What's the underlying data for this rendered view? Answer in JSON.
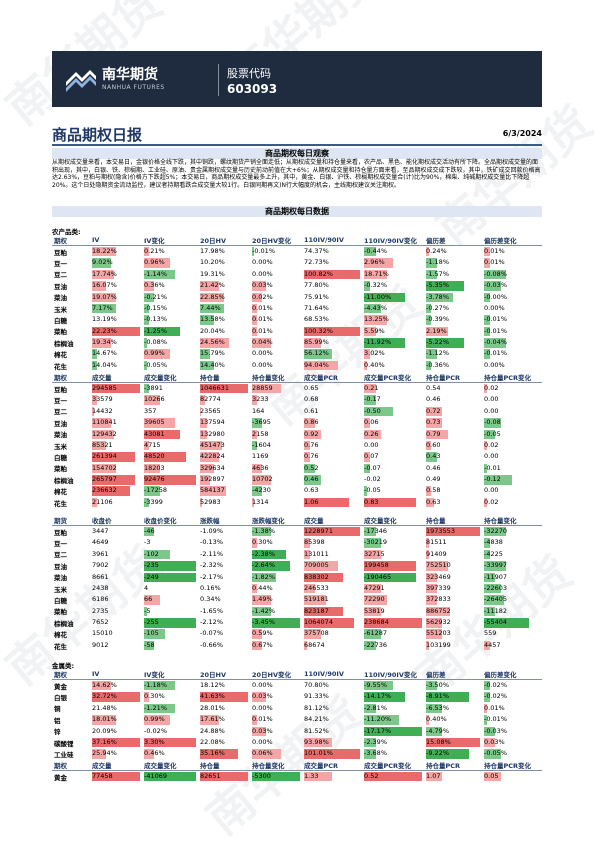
{
  "header": {
    "brand_cn": "南华期货",
    "brand_en": "NANHUA FUTURES",
    "stock_label": "股票代码",
    "stock_code": "603093"
  },
  "report": {
    "title": "商品期权日报",
    "date": "6/3/2024"
  },
  "observation": {
    "heading": "商品期权每日观察",
    "text": "从期权成交量来看，本交易日，金银价格全线下跌，其中铜跌，螺纹期货产销全面走低；从期权成交量和持仓量来看，农产品、黑色、能化期权成交活动有所下降。全品期权成交量的面积出现，其中，白银、铁、棕榈期、工业硅、原油、贵金属期权成交量与历史前动前值在大+6%；从期权成交量和持仓量方面来看，至品期权成交成下跌较，其中，铁矿成交回款价格高达2.63%，豆粕与期权(隐含)价格方下跌超5%；本交易日，商品期权成交量最多上升，其中，黄金、白银、沪铁、棕榈期权成交量合(计)比为90%，棉柴、纯碱期权成交量比下降超20%。这个日处隐期资金流动监控，建议者持期看跌合成交量大较1行。白银同期再文)N行大幅度的机会，主线期权建议关注期权。"
  },
  "data_heading": "商品期权每日数据",
  "colors": {
    "red": "#f4a6a6",
    "green": "#7cc88a",
    "red_strong": "#e86a6a",
    "green_strong": "#3fae55",
    "accent": "#1f3864"
  },
  "agri": {
    "label": "农产品类:",
    "iv_headers": [
      "期权",
      "IV",
      "IV变化",
      "20日HV",
      "20日HV变化",
      "110IV/90IV",
      "110IV/90IV变化",
      "偏历差",
      "偏历差变化"
    ],
    "iv_rows": [
      {
        "name": "豆粕",
        "c": [
          "18.22%",
          "0.21%",
          "17.98%",
          "-0.01%",
          "74.37%",
          "-0.44%",
          "0.24%",
          "0.01%"
        ],
        "v": [
          0.5,
          0.1,
          0,
          -0.05,
          0,
          -0.2,
          0.05,
          0.1
        ]
      },
      {
        "name": "豆一",
        "c": [
          "9.02%",
          "0.96%",
          "10.20%",
          "0.00%",
          "72.73%",
          "2.96%",
          "-1.18%",
          "0.01%"
        ],
        "v": [
          -0.4,
          0.5,
          0,
          0,
          0,
          0.5,
          -0.2,
          0.1
        ]
      },
      {
        "name": "豆二",
        "c": [
          "17.74%",
          "-1.14%",
          "19.31%",
          "0.00%",
          "100.82%",
          "18.71%",
          "-1.57%",
          "-0.08%"
        ],
        "v": [
          0.45,
          -0.6,
          0,
          0,
          1,
          0.4,
          -0.2,
          -0.4
        ]
      },
      {
        "name": "豆油",
        "c": [
          "16.07%",
          "0.36%",
          "21.42%",
          "0.03%",
          "77.80%",
          "-0.32%",
          "-5.35%",
          "-0.03%"
        ],
        "v": [
          0.3,
          0.2,
          0.4,
          0.3,
          0,
          -0.1,
          -0.7,
          -0.3
        ]
      },
      {
        "name": "菜油",
        "c": [
          "19.07%",
          "-0.21%",
          "22.85%",
          "0.02%",
          "75.91%",
          "-11.00%",
          "-3.78%",
          "-0.00%"
        ],
        "v": [
          0.5,
          -0.2,
          0.5,
          0.2,
          0,
          -0.7,
          -0.5,
          -0.1
        ]
      },
      {
        "name": "玉米",
        "c": [
          "7.17%",
          "-0.15%",
          "7.44%",
          "0.01%",
          "71.64%",
          "-4.43%",
          "-0.27%",
          "0.00%"
        ],
        "v": [
          -0.5,
          -0.1,
          -0.5,
          0.1,
          0,
          -0.3,
          -0.1,
          0
        ]
      },
      {
        "name": "白糖",
        "c": [
          "13.19%",
          "-0.13%",
          "13.58%",
          "0.01%",
          "68.53%",
          "13.25%",
          "-0.39%",
          "-0.01%"
        ],
        "v": [
          0,
          -0.1,
          -0.3,
          0.1,
          0,
          0.4,
          -0.1,
          -0.1
        ]
      },
      {
        "name": "菜粕",
        "c": [
          "22.23%",
          "-1.25%",
          "20.04%",
          "0.01%",
          "100.32%",
          "5.59%",
          "2.19%",
          "-0.01%"
        ],
        "v": [
          1,
          -0.7,
          0,
          0.1,
          1,
          0.2,
          0.4,
          -0.1
        ]
      },
      {
        "name": "棕榈油",
        "c": [
          "19.34%",
          "-0.08%",
          "24.56%",
          "0.04%",
          "85.99%",
          "-11.92%",
          "-5.22%",
          "-0.04%"
        ],
        "v": [
          0.4,
          -0.05,
          0.6,
          0.4,
          0.3,
          -0.7,
          -0.7,
          -0.4
        ]
      },
      {
        "name": "棉花",
        "c": [
          "14.67%",
          "0.99%",
          "15.79%",
          "0.00%",
          "56.12%",
          "3.02%",
          "-1.12%",
          "-0.01%"
        ],
        "v": [
          -0.1,
          0.5,
          -0.2,
          0,
          -0.5,
          0.1,
          -0.2,
          -0.1
        ]
      },
      {
        "name": "花生",
        "c": [
          "14.04%",
          "-0.05%",
          "14.40%",
          "0.00%",
          "94.04%",
          "0.40%",
          "-0.36%",
          "0.00%"
        ],
        "v": [
          -0.1,
          -0.05,
          -0.3,
          0,
          0.6,
          0.05,
          -0.1,
          0
        ]
      }
    ],
    "vol_headers": [
      "期权",
      "成交量",
      "成交量变化",
      "持仓量",
      "持仓量变化",
      "成交量PCR",
      "成交量PCR变化",
      "持仓量PCR",
      "持仓量PCR变化"
    ],
    "vol_rows": [
      {
        "name": "豆粕",
        "c": [
          "294585",
          "-3891",
          "1046631",
          "28859",
          "0.65",
          "0.21",
          "0.54",
          "0.02"
        ],
        "v": [
          1,
          -0.1,
          1,
          0.6,
          0,
          0.2,
          0,
          0.05
        ]
      },
      {
        "name": "豆一",
        "c": [
          "33579",
          "10266",
          "82774",
          "3233",
          "0.68",
          "-0.17",
          "0.46",
          "0.00"
        ],
        "v": [
          0.1,
          0.3,
          0.1,
          0.1,
          0,
          -0.2,
          0,
          0
        ]
      },
      {
        "name": "豆二",
        "c": [
          "14432",
          "357",
          "23565",
          "164",
          "0.61",
          "-0.50",
          "0.72",
          "0.00"
        ],
        "v": [
          0.05,
          0,
          0.03,
          0,
          0,
          -0.5,
          0.3,
          0
        ]
      },
      {
        "name": "豆油",
        "c": [
          "110841",
          "39605",
          "137594",
          "-3695",
          "0.86",
          "0.06",
          "0.73",
          "-0.08"
        ],
        "v": [
          0.4,
          0.6,
          0.15,
          -0.2,
          0.2,
          0.1,
          0.3,
          -0.3
        ]
      },
      {
        "name": "菜油",
        "c": [
          "129432",
          "43081",
          "132980",
          "2158",
          "0.92",
          "0.26",
          "0.79",
          "-0.05"
        ],
        "v": [
          0.45,
          0.7,
          0.15,
          0.1,
          0.3,
          0.3,
          0.4,
          -0.2
        ]
      },
      {
        "name": "玉米",
        "c": [
          "85321",
          "4715",
          "451473",
          "-1604",
          "0.76",
          "0.00",
          "0.60",
          "0.02"
        ],
        "v": [
          0.3,
          0.1,
          0.45,
          -0.1,
          0.1,
          0,
          0.1,
          0.05
        ]
      },
      {
        "name": "白糖",
        "c": [
          "261394",
          "48520",
          "422824",
          "1169",
          "0.76",
          "0.07",
          "0.43",
          "0.00"
        ],
        "v": [
          0.9,
          0.8,
          0.4,
          0,
          0.1,
          0.1,
          -0.2,
          0
        ]
      },
      {
        "name": "菜粕",
        "c": [
          "154702",
          "18203",
          "329634",
          "4636",
          "0.52",
          "-0.07",
          "0.46",
          "-0.01"
        ],
        "v": [
          0.5,
          0.3,
          0.3,
          0.2,
          -0.2,
          -0.1,
          0,
          -0.05
        ]
      },
      {
        "name": "棕榈油",
        "c": [
          "265797",
          "92476",
          "192897",
          "10702",
          "0.46",
          "-0.02",
          "0.49",
          "-0.12"
        ],
        "v": [
          0.9,
          1,
          0.2,
          0.4,
          -0.3,
          0,
          0,
          -0.5
        ]
      },
      {
        "name": "棉花",
        "c": [
          "236632",
          "-17258",
          "584137",
          "-4230",
          "0.63",
          "-0.05",
          "0.58",
          "0.00"
        ],
        "v": [
          0.8,
          -0.3,
          0.55,
          -0.2,
          0,
          -0.05,
          0.1,
          0
        ]
      },
      {
        "name": "花生",
        "c": [
          "21106",
          "-3399",
          "52983",
          "1314",
          "1.06",
          "0.83",
          "0.63",
          "0.02"
        ],
        "v": [
          0.1,
          -0.1,
          0.05,
          0.05,
          0.8,
          0.9,
          0.15,
          0.05
        ]
      }
    ],
    "fut_headers": [
      "期货",
      "收盘价",
      "收盘价变化",
      "涨跌幅",
      "涨跌幅变化",
      "成交量",
      "成交量变化",
      "持仓量",
      "持仓量变化"
    ],
    "fut_rows": [
      {
        "name": "豆粕",
        "c": [
          "3447",
          "-46",
          "-1.09%",
          "-1.38%",
          "1228971",
          "-17346",
          "1973553",
          "-32270"
        ],
        "v": [
          0,
          -0.2,
          0,
          -0.4,
          1,
          -0.2,
          1,
          -0.4
        ]
      },
      {
        "name": "豆一",
        "c": [
          "4649",
          "-3",
          "-0.13%",
          "0.30%",
          "85398",
          "-30219",
          "81511",
          "-4838"
        ],
        "v": [
          0,
          0,
          0,
          0.1,
          0.1,
          -0.3,
          0.05,
          -0.1
        ]
      },
      {
        "name": "豆二",
        "c": [
          "3961",
          "-102",
          "-2.11%",
          "-2.38%",
          "131011",
          "32715",
          "91409",
          "-4225"
        ],
        "v": [
          0,
          -0.5,
          0,
          -0.7,
          0.1,
          0.3,
          0.05,
          -0.1
        ]
      },
      {
        "name": "豆油",
        "c": [
          "7902",
          "-235",
          "-2.32%",
          "-2.64%",
          "709005",
          "199458",
          "752510",
          "-33997"
        ],
        "v": [
          0,
          -1,
          0,
          -0.8,
          0.6,
          0.9,
          0.4,
          -0.4
        ]
      },
      {
        "name": "菜油",
        "c": [
          "8661",
          "-249",
          "-2.17%",
          "-1.82%",
          "838302",
          "-190465",
          "323469",
          "-11907"
        ],
        "v": [
          0,
          -1,
          0,
          -0.5,
          0.7,
          -0.9,
          0.2,
          -0.2
        ]
      },
      {
        "name": "玉米",
        "c": [
          "2438",
          "4",
          "0.16%",
          "0.44%",
          "246533",
          "47291",
          "397339",
          "-22603"
        ],
        "v": [
          0,
          0,
          0,
          0.1,
          0.2,
          0.3,
          0.2,
          -0.3
        ]
      },
      {
        "name": "白糖",
        "c": [
          "6186",
          "66",
          "0.34%",
          "1.49%",
          "519181",
          "72290",
          "372833",
          "-26405"
        ],
        "v": [
          0,
          0.3,
          0,
          0.4,
          0.4,
          0.4,
          0.2,
          -0.35
        ]
      },
      {
        "name": "菜粕",
        "c": [
          "2735",
          "-5",
          "-1.65%",
          "-1.42%",
          "823187",
          "53819",
          "886752",
          "-11182"
        ],
        "v": [
          0,
          -0.05,
          0,
          -0.4,
          0.7,
          0.3,
          0.45,
          -0.2
        ]
      },
      {
        "name": "棕榈油",
        "c": [
          "7652",
          "-255",
          "-2.12%",
          "-3.45%",
          "1064074",
          "238684",
          "562932",
          "-55404"
        ],
        "v": [
          0,
          -1,
          0,
          -1,
          0.9,
          1,
          0.3,
          -0.8
        ]
      },
      {
        "name": "棉花",
        "c": [
          "15010",
          "-105",
          "-0.07%",
          "0.59%",
          "375708",
          "-61287",
          "551203",
          "559"
        ],
        "v": [
          0,
          -0.4,
          0,
          0.2,
          0.3,
          -0.3,
          0.3,
          0
        ]
      },
      {
        "name": "花生",
        "c": [
          "9012",
          "-58",
          "-0.66%",
          "0.67%",
          "68674",
          "-22736",
          "103199",
          "4457"
        ],
        "v": [
          0,
          -0.2,
          0,
          0.2,
          0.05,
          -0.2,
          0.05,
          0.1
        ]
      }
    ]
  },
  "metal": {
    "label": "金属类:",
    "iv_headers": [
      "期权",
      "IV",
      "IV变化",
      "20日HV",
      "20日HV变化",
      "110IV/90IV",
      "110IV/90IV变化",
      "偏历差",
      "偏历差变化"
    ],
    "iv_rows": [
      {
        "name": "黄金",
        "c": [
          "14.62%",
          "-1.18%",
          "18.12%",
          "0.00%",
          "70.80%",
          "-9.55%",
          "-3.50%",
          "-0.02%"
        ],
        "v": [
          0.4,
          -0.6,
          0,
          0,
          0,
          -0.5,
          -0.2,
          -0.1
        ]
      },
      {
        "name": "白银",
        "c": [
          "32.72%",
          "0.30%",
          "41.63%",
          "0.03%",
          "91.33%",
          "-14.17%",
          "-8.91%",
          "-0.02%"
        ],
        "v": [
          1,
          0.1,
          1,
          0.3,
          0,
          -0.7,
          -0.8,
          -0.1
        ]
      },
      {
        "name": "铜",
        "c": [
          "21.48%",
          "-1.21%",
          "28.01%",
          "0.00%",
          "81.12%",
          "-2.81%",
          "-6.53%",
          "0.01%"
        ],
        "v": [
          0,
          -0.6,
          0,
          0,
          0,
          -0.2,
          -0.3,
          0.05
        ]
      },
      {
        "name": "铝",
        "c": [
          "18.01%",
          "0.99%",
          "17.61%",
          "0.01%",
          "84.21%",
          "-11.20%",
          "0.40%",
          "-0.01%"
        ],
        "v": [
          0.5,
          0.5,
          0.4,
          0.1,
          0,
          -0.6,
          0.05,
          -0.05
        ]
      },
      {
        "name": "锌",
        "c": [
          "20.09%",
          "-0.02%",
          "24.88%",
          "0.03%",
          "81.52%",
          "-17.17%",
          "-4.79%",
          "-0.03%"
        ],
        "v": [
          0,
          0,
          0,
          0.3,
          0,
          -1,
          -0.3,
          -0.2
        ]
      },
      {
        "name": "碳酸锂",
        "c": [
          "37.16%",
          "3.30%",
          "22.08%",
          "0.00%",
          "93.98%",
          "-2.39%",
          "15.08%",
          "0.03%"
        ],
        "v": [
          1,
          1,
          0,
          0,
          0.5,
          -0.2,
          1,
          0.2
        ]
      },
      {
        "name": "工业硅",
        "c": [
          "25.94%",
          "0.46%",
          "35.16%",
          "0.06%",
          "101.01%",
          "-3.68%",
          "-9.22%",
          "-0.05%"
        ],
        "v": [
          0.3,
          0.2,
          0.8,
          0.6,
          1,
          -0.2,
          -0.8,
          -0.3
        ]
      }
    ],
    "vol_headers": [
      "期权",
      "成交量",
      "成交量变化",
      "持仓量",
      "持仓量变化",
      "成交量PCR",
      "成交量PCR变化",
      "持仓量PCR",
      "持仓量PCR变化"
    ],
    "vol_rows": [
      {
        "name": "黄金",
        "c": [
          "77458",
          "-41069",
          "82651",
          "-5300",
          "1.33",
          "0.52",
          "1.07",
          "0.05"
        ],
        "v": [
          1,
          -1,
          1,
          -1,
          0.5,
          1,
          0.3,
          0.3
        ]
      }
    ]
  }
}
